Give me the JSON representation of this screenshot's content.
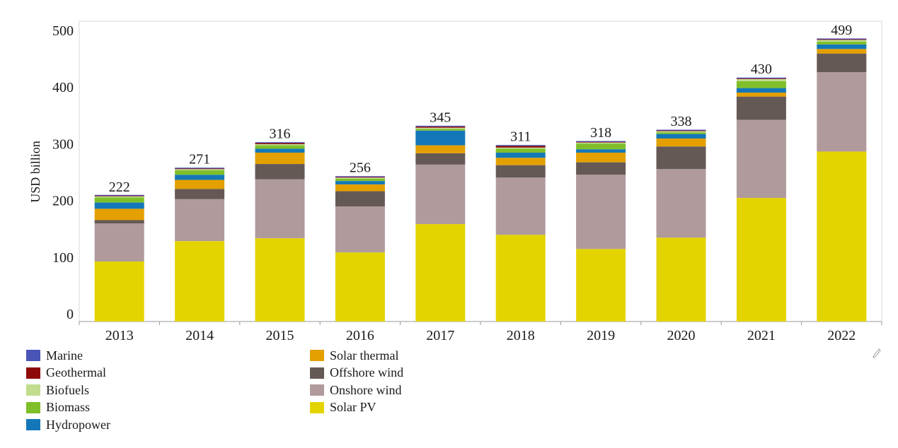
{
  "chart_data": {
    "type": "bar",
    "stacked": true,
    "title": "",
    "xlabel": "",
    "ylabel": "USD billion",
    "ylim": [
      0,
      530
    ],
    "yticks": [
      0,
      100,
      200,
      300,
      400,
      500
    ],
    "categories": [
      "2013",
      "2014",
      "2015",
      "2016",
      "2017",
      "2018",
      "2019",
      "2020",
      "2021",
      "2022"
    ],
    "totals": [
      222,
      271,
      316,
      256,
      345,
      311,
      318,
      338,
      430,
      499
    ],
    "series": [
      {
        "name": "Solar PV",
        "color": "#e3d400",
        "values": [
          106,
          142,
          147,
          122,
          172,
          153,
          128,
          148,
          218,
          300
        ]
      },
      {
        "name": "Onshore wind",
        "color": "#b09a9c",
        "values": [
          67,
          74,
          104,
          81,
          105,
          101,
          131,
          121,
          138,
          140
        ]
      },
      {
        "name": "Offshore wind",
        "color": "#655956",
        "values": [
          6,
          18,
          27,
          27,
          20,
          22,
          22,
          40,
          41,
          33
        ]
      },
      {
        "name": "Solar thermal",
        "color": "#e3a000",
        "values": [
          20,
          16,
          20,
          12,
          14,
          13,
          17,
          14,
          7,
          8
        ]
      },
      {
        "name": "Hydropower",
        "color": "#1478b8",
        "values": [
          11,
          9,
          7,
          6,
          26,
          9,
          6,
          8,
          8,
          8
        ]
      },
      {
        "name": "Biomass",
        "color": "#7fbf2a",
        "values": [
          9,
          8,
          6,
          4,
          3,
          7,
          10,
          3,
          12,
          5
        ]
      },
      {
        "name": "Biofuels",
        "color": "#c2dd8e",
        "values": [
          2,
          2,
          2,
          2,
          2,
          2,
          2,
          2,
          4,
          3
        ]
      },
      {
        "name": "Geothermal",
        "color": "#8e0a0a",
        "values": [
          1,
          1,
          2,
          1,
          2,
          3,
          1,
          1,
          1,
          1
        ]
      },
      {
        "name": "Marine",
        "color": "#4a55b8",
        "values": [
          0.5,
          0.5,
          0.5,
          0.5,
          0.5,
          0.5,
          0.5,
          0.5,
          0.5,
          0.5
        ]
      }
    ],
    "legend": {
      "column_1": [
        "Marine",
        "Geothermal",
        "Biofuels",
        "Biomass",
        "Hydropower"
      ],
      "column_2": [
        "Solar thermal",
        "Offshore wind",
        "Onshore wind",
        "Solar PV"
      ]
    },
    "grid": false,
    "legend_position": "bottom-left"
  }
}
